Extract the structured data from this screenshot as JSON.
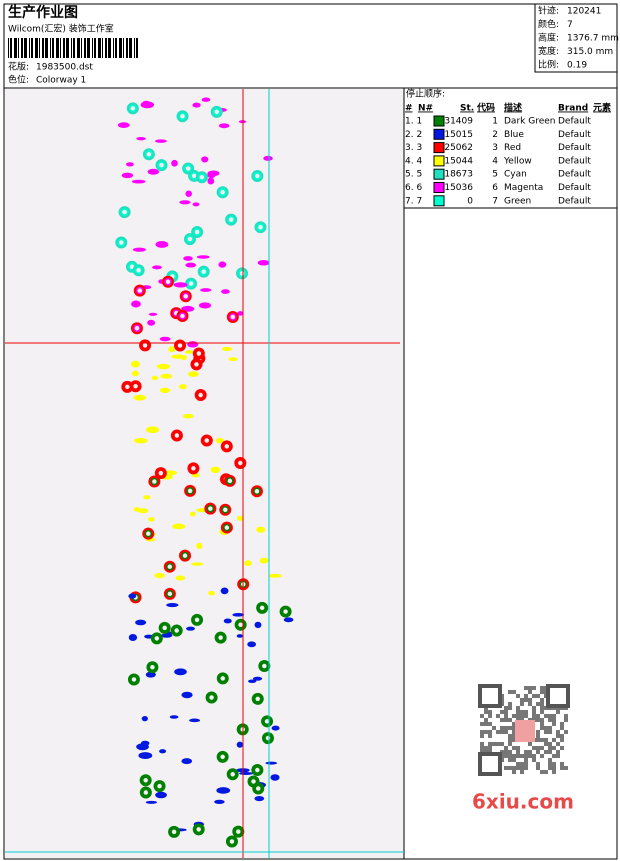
{
  "header": {
    "title": "生产作业图",
    "company": "Wilcom(汇宏) 装饰工作室",
    "design": {
      "label": "花版:",
      "value": "1983500.dst"
    },
    "colorway": {
      "label": "色位:",
      "value": "Colorway 1"
    }
  },
  "info": [
    {
      "label": "针迹:",
      "value": "120241"
    },
    {
      "label": "颜色:",
      "value": "7"
    },
    {
      "label": "高度:",
      "value": "1376.7 mm"
    },
    {
      "label": "宽度:",
      "value": "315.0 mm"
    },
    {
      "label": "比例:",
      "value": "0.19"
    }
  ],
  "stop_sequence": {
    "title": "停止顺序:",
    "columns": [
      "#",
      "N#",
      "St.",
      "代码",
      "描述",
      "Brand",
      "元素"
    ],
    "rows": [
      {
        "index": "1. 1",
        "color": "#008000",
        "stitches": 31409,
        "code": 1,
        "description": "Dark Green",
        "brand": "Default"
      },
      {
        "index": "2. 2",
        "color": "#0018e0",
        "stitches": 15015,
        "code": 2,
        "description": "Blue",
        "brand": "Default"
      },
      {
        "index": "3. 3",
        "color": "#ff0000",
        "stitches": 25062,
        "code": 3,
        "description": "Red",
        "brand": "Default"
      },
      {
        "index": "4. 4",
        "color": "#ffff00",
        "stitches": 15044,
        "code": 4,
        "description": "Yellow",
        "brand": "Default"
      },
      {
        "index": "5. 5",
        "color": "#20e0c0",
        "stitches": 18673,
        "code": 5,
        "description": "Cyan",
        "brand": "Default"
      },
      {
        "index": "6. 6",
        "color": "#ff00ff",
        "stitches": 15036,
        "code": 6,
        "description": "Magenta",
        "brand": "Default"
      },
      {
        "index": "7. 7",
        "color": "#00ffd0",
        "stitches": 0,
        "code": 7,
        "description": "Green",
        "brand": "Default"
      }
    ]
  },
  "watermark": "6xiu.com"
}
